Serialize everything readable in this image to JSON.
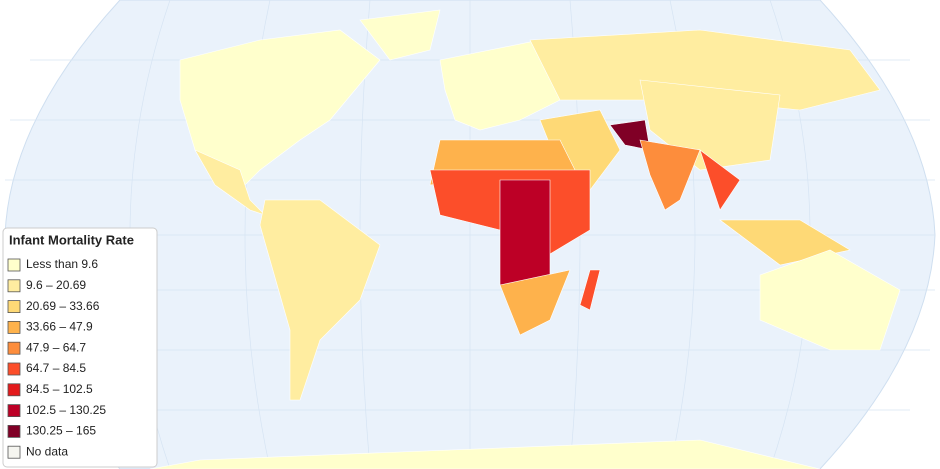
{
  "legend": {
    "title": "Infant Mortality Rate",
    "items": [
      {
        "label": "Less than 9.6",
        "color": "#ffffcc"
      },
      {
        "label": "9.6 – 20.69",
        "color": "#ffeda0"
      },
      {
        "label": "20.69 – 33.66",
        "color": "#fed976"
      },
      {
        "label": "33.66 – 47.9",
        "color": "#feb24c"
      },
      {
        "label": "47.9 – 64.7",
        "color": "#fd8d3c"
      },
      {
        "label": "64.7 – 84.5",
        "color": "#fc4e2a"
      },
      {
        "label": "84.5 – 102.5",
        "color": "#e31a1c"
      },
      {
        "label": "102.5 – 130.25",
        "color": "#bd0026"
      },
      {
        "label": "130.25 – 165",
        "color": "#800026"
      },
      {
        "label": "No data",
        "color": "#f5f5f0"
      }
    ]
  }
}
